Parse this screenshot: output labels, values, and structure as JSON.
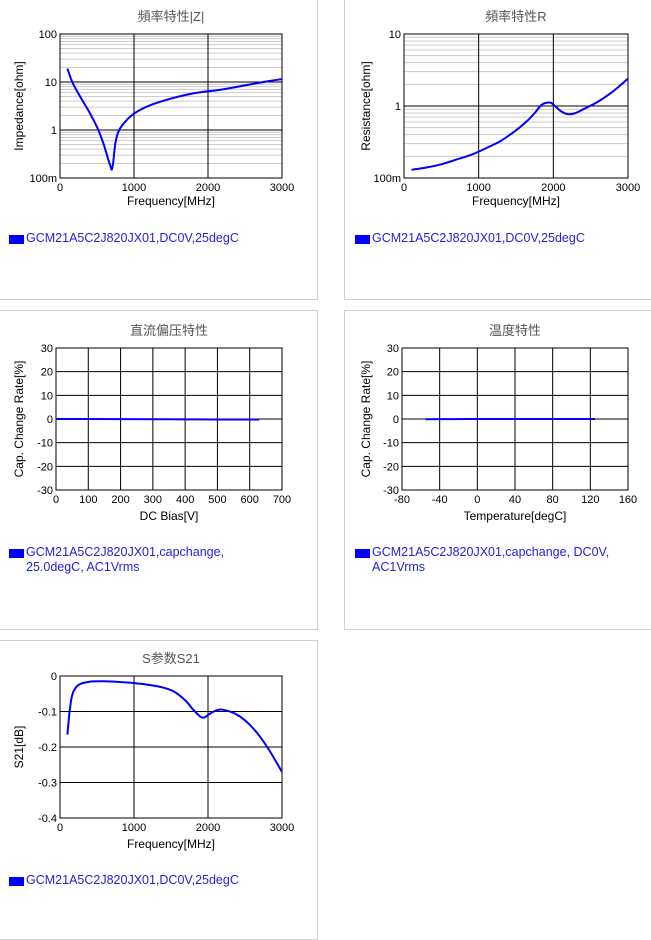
{
  "colors": {
    "series": "#0000ff",
    "legend_text": "#2323d8",
    "title": "#555555"
  },
  "chart_data": [
    {
      "type": "line",
      "title": "頻率特性|Z|",
      "xlabel": "Frequency[MHz]",
      "ylabel": "Impedance[ohm]",
      "xlim": [
        0,
        3000
      ],
      "ylim": [
        0.1,
        100
      ],
      "yscale": "log",
      "grid": true,
      "xticks": [
        0,
        1000,
        2000,
        3000
      ],
      "xtick_labels": [
        "0",
        "1000",
        "2000",
        "3000"
      ],
      "yticks": [
        0.1,
        1,
        10,
        100
      ],
      "ytick_labels": [
        "100m",
        "1",
        "10",
        "100"
      ],
      "legend": "GCM21A5C2J820JX01,DC0V,25degC",
      "series": [
        {
          "name": "GCM21A5C2J820JX01,DC0V,25degC",
          "x": [
            100,
            150,
            200,
            300,
            400,
            500,
            550,
            600,
            650,
            680,
            700,
            720,
            750,
            800,
            900,
            1000,
            1200,
            1500,
            1800,
            2000,
            2200,
            2500,
            2800,
            3000
          ],
          "y": [
            19,
            11.5,
            7.8,
            4.2,
            2.3,
            1.15,
            0.75,
            0.45,
            0.25,
            0.18,
            0.15,
            0.22,
            0.55,
            1.0,
            1.6,
            2.2,
            3.2,
            4.5,
            5.8,
            6.4,
            7.0,
            8.5,
            10.3,
            11.5
          ]
        }
      ]
    },
    {
      "type": "line",
      "title": "頻率特性R",
      "xlabel": "Frequency[MHz]",
      "ylabel": "Resistance[ohm]",
      "xlim": [
        0,
        3000
      ],
      "ylim": [
        0.1,
        10
      ],
      "yscale": "log",
      "grid": true,
      "xticks": [
        0,
        1000,
        2000,
        3000
      ],
      "xtick_labels": [
        "0",
        "1000",
        "2000",
        "3000"
      ],
      "yticks": [
        0.1,
        1,
        10
      ],
      "ytick_labels": [
        "100m",
        "1",
        "10"
      ],
      "legend": "GCM21A5C2J820JX01,DC0V,25degC",
      "series": [
        {
          "name": "GCM21A5C2J820JX01,DC0V,25degC",
          "x": [
            100,
            300,
            500,
            700,
            900,
            1100,
            1300,
            1500,
            1650,
            1750,
            1850,
            1950,
            2000,
            2100,
            2200,
            2300,
            2400,
            2600,
            2800,
            3000
          ],
          "y": [
            0.13,
            0.14,
            0.155,
            0.18,
            0.21,
            0.26,
            0.33,
            0.46,
            0.62,
            0.8,
            1.05,
            1.12,
            1.05,
            0.85,
            0.77,
            0.8,
            0.9,
            1.15,
            1.6,
            2.4
          ]
        }
      ]
    },
    {
      "type": "line",
      "title": "直流偏压特性",
      "xlabel": "DC Bias[V]",
      "ylabel": "Cap. Change Rate[%]",
      "xlim": [
        0,
        700
      ],
      "ylim": [
        -30,
        30
      ],
      "grid": true,
      "xticks": [
        0,
        100,
        200,
        300,
        400,
        500,
        600,
        700
      ],
      "xtick_labels": [
        "0",
        "100",
        "200",
        "300",
        "400",
        "500",
        "600",
        "700"
      ],
      "yticks": [
        -30,
        -20,
        -10,
        0,
        10,
        20,
        30
      ],
      "ytick_labels": [
        "-30",
        "-20",
        "-10",
        "0",
        "10",
        "20",
        "30"
      ],
      "legend": "GCM21A5C2J820JX01,capchange,\n25.0degC, AC1Vrms",
      "series": [
        {
          "name": "GCM21A5C2J820JX01,capchange, 25.0degC, AC1Vrms",
          "x": [
            0,
            100,
            200,
            300,
            400,
            500,
            630
          ],
          "y": [
            0,
            0,
            -0.05,
            -0.1,
            -0.15,
            -0.2,
            -0.2
          ]
        }
      ]
    },
    {
      "type": "line",
      "title": "温度特性",
      "xlabel": "Temperature[degC]",
      "ylabel": "Cap. Change Rate[%]",
      "xlim": [
        -80,
        160
      ],
      "ylim": [
        -30,
        30
      ],
      "grid": true,
      "xticks": [
        -80,
        -40,
        0,
        40,
        80,
        120,
        160
      ],
      "xtick_labels": [
        "-80",
        "-40",
        "0",
        "40",
        "80",
        "120",
        "160"
      ],
      "yticks": [
        -30,
        -20,
        -10,
        0,
        10,
        20,
        30
      ],
      "ytick_labels": [
        "-30",
        "-20",
        "-10",
        "0",
        "10",
        "20",
        "30"
      ],
      "legend": "GCM21A5C2J820JX01,capchange, DC0V,\nAC1Vrms",
      "series": [
        {
          "name": "GCM21A5C2J820JX01,capchange, DC0V, AC1Vrms",
          "x": [
            -55,
            -25,
            0,
            25,
            50,
            85,
            125
          ],
          "y": [
            -0.1,
            -0.05,
            0,
            0,
            0,
            0,
            0
          ]
        }
      ]
    },
    {
      "type": "line",
      "title": "S参数S21",
      "xlabel": "Frequency[MHz]",
      "ylabel": "S21[dB]",
      "xlim": [
        0,
        3000
      ],
      "ylim": [
        -0.4,
        0
      ],
      "grid": true,
      "xticks": [
        0,
        1000,
        2000,
        3000
      ],
      "xtick_labels": [
        "0",
        "1000",
        "2000",
        "3000"
      ],
      "yticks": [
        -0.4,
        -0.3,
        -0.2,
        -0.1,
        0
      ],
      "ytick_labels": [
        "-0.4",
        "-0.3",
        "-0.2",
        "-0.1",
        "0"
      ],
      "legend": "GCM21A5C2J820JX01,DC0V,25degC",
      "series": [
        {
          "name": "GCM21A5C2J820JX01,DC0V,25degC",
          "x": [
            100,
            130,
            170,
            250,
            400,
            600,
            800,
            1000,
            1200,
            1400,
            1550,
            1700,
            1800,
            1900,
            1950,
            2000,
            2100,
            2200,
            2400,
            2600,
            2800,
            3000
          ],
          "y": [
            -0.165,
            -0.1,
            -0.05,
            -0.025,
            -0.016,
            -0.015,
            -0.017,
            -0.02,
            -0.025,
            -0.033,
            -0.045,
            -0.07,
            -0.095,
            -0.115,
            -0.117,
            -0.11,
            -0.098,
            -0.095,
            -0.11,
            -0.145,
            -0.2,
            -0.27
          ]
        }
      ]
    }
  ]
}
